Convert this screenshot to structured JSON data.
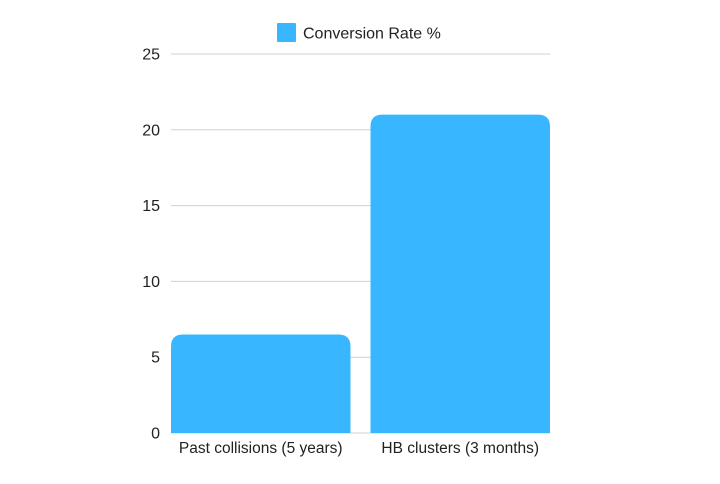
{
  "chart_data": {
    "type": "bar",
    "categories": [
      "Past collisions (5 years)",
      "HB clusters (3 months)"
    ],
    "series": [
      {
        "name": "Conversion Rate %",
        "values": [
          6.5,
          21
        ],
        "color": "#38b6ff"
      }
    ],
    "y_ticks": [
      "0",
      "5",
      "10",
      "15",
      "20",
      "25"
    ],
    "ylim": [
      0,
      25
    ],
    "grid": true,
    "legend_position": "top-center",
    "title": "",
    "xlabel": "",
    "ylabel": ""
  }
}
